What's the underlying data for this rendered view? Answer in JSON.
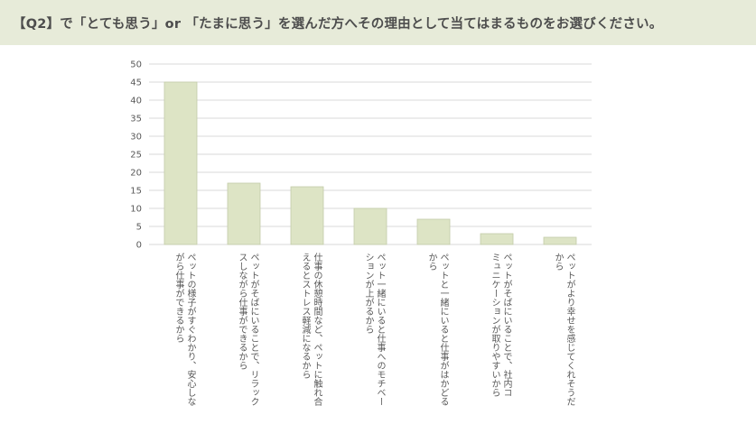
{
  "header": {
    "title": "【Q2】で「とても思う」or 「たまに思う」を選んだ方へその理由として当てはまるものをお選びください。"
  },
  "colors": {
    "header_bg": "#e7ebd9",
    "bar_fill": "#dde4c5",
    "bar_stroke": "#c4cca8",
    "grid": "#d9d9d9"
  },
  "chart_data": {
    "type": "bar",
    "ylim": [
      0,
      50
    ],
    "yticks": [
      0,
      5,
      10,
      15,
      20,
      25,
      30,
      35,
      40,
      45,
      50
    ],
    "grid": true,
    "categories": [
      [
        "ペットの様子がすぐわかり、安心しな",
        "がら仕事ができるから"
      ],
      [
        "ペットがそばにいることで、リラック",
        "スしながら仕事ができるから"
      ],
      [
        "仕事の休憩時間など、ペットに触れ合",
        "えるとストレス軽減になるから"
      ],
      [
        "ペット一緒にいると仕事へのモチベー",
        "ションが上がるから"
      ],
      [
        "ペットと一緒にいると仕事がはかどる",
        "から"
      ],
      [
        "ペットがそばにいることで、社内コ",
        "ミュニケーションが取りやすいから"
      ],
      [
        "ペットがより幸せを感じてくれそうだ",
        "から"
      ]
    ],
    "values": [
      45,
      17,
      16,
      10,
      7,
      3,
      2
    ]
  }
}
